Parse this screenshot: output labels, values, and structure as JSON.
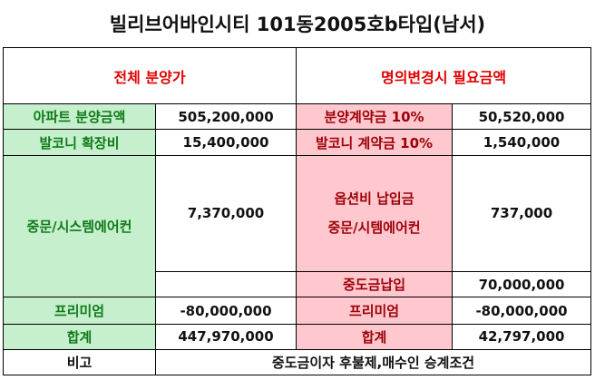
{
  "title": "빌리브어바인시티 101동2005호b타입(남서)",
  "headers": {
    "left": "전체 분양가",
    "right": "명의변경시 필요금액"
  },
  "rows": [
    {
      "left_label": "아파트 분양금액",
      "left_value": "505,200,000",
      "right_label": "분양계약금 10%",
      "right_value": "50,520,000"
    },
    {
      "left_label": "발코니 확장비",
      "left_value": "15,400,000",
      "right_label": "발코니 계약금 10%",
      "right_value": "1,540,000"
    }
  ],
  "option_block": {
    "left_label": "중문/시스템에어컨",
    "left_value": "7,370,000",
    "right_label_line1": "옵션비 납입금",
    "right_label_line2": "중문/시템에어컨",
    "right_value": "737,000",
    "mid_label": "중도금납입",
    "mid_value": "70,000,000"
  },
  "premium": {
    "left_label": "프리미엄",
    "left_value": "-80,000,000",
    "right_label": "프리미엄",
    "right_value": "-80,000,000"
  },
  "total": {
    "left_label": "합계",
    "left_value": "447,970,000",
    "right_label": "합계",
    "right_value": "42,797,000"
  },
  "note": {
    "label": "비고",
    "value": "중도금이자 후불제,매수인 승계조건"
  },
  "colors": {
    "green_fill": "#c6efce",
    "green_text": "#0f7a17",
    "pink_fill": "#ffc7ce",
    "red_text": "#e00000"
  }
}
